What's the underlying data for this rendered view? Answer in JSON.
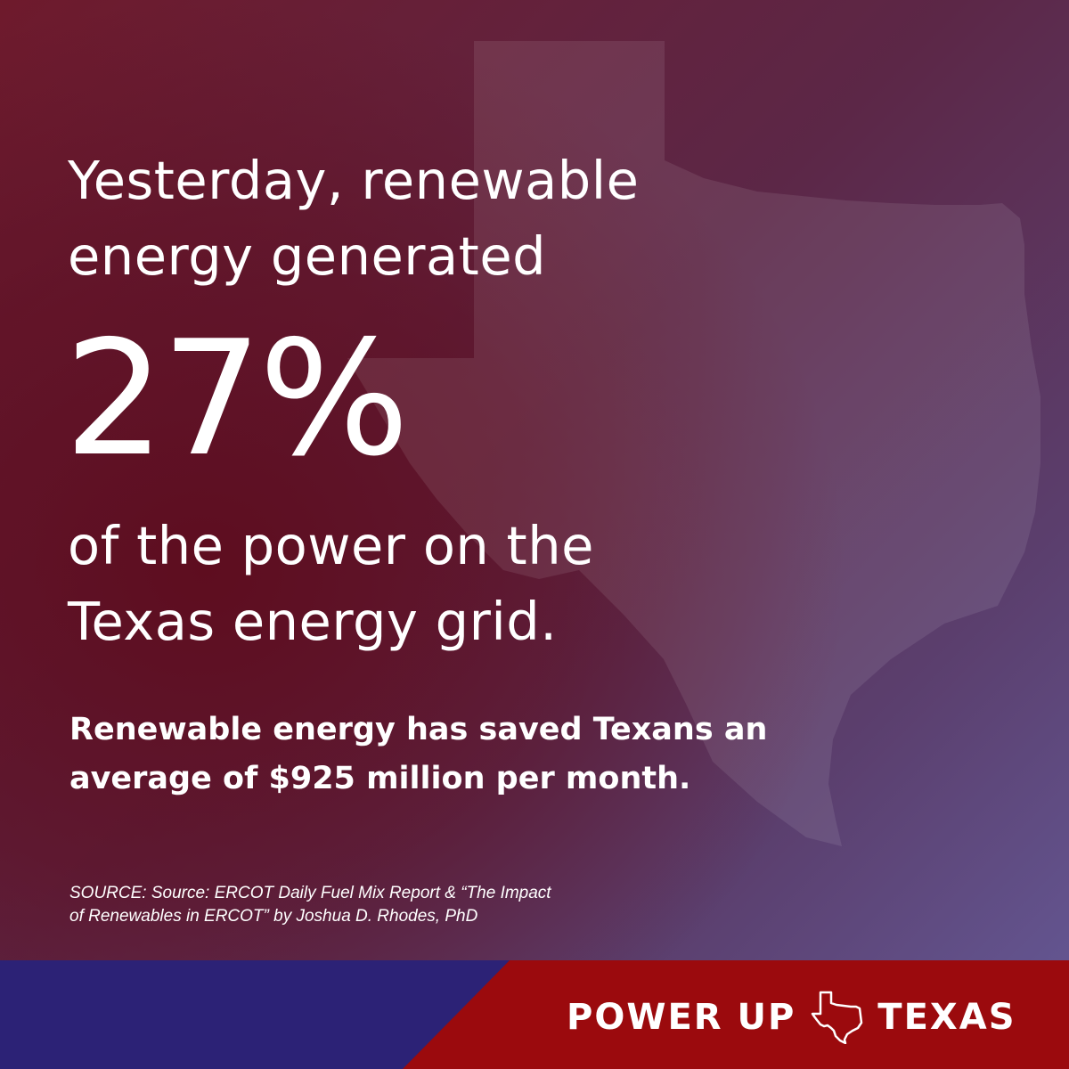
{
  "headline": {
    "line1": "Yesterday, renewable",
    "line2": "energy generated"
  },
  "stat": {
    "value": "27%"
  },
  "after_stat": {
    "line1": "of the power on the",
    "line2": "Texas energy grid."
  },
  "savings": {
    "line1": "Renewable energy has saved Texans an",
    "line2": "average of $925 million per month."
  },
  "source": {
    "line1": "SOURCE: Source: ERCOT Daily Fuel Mix Report & “The Impact",
    "line2": "of Renewables in ERCOT” by Joshua D. Rhodes, PhD"
  },
  "brand": {
    "left_word": "POWER UP",
    "icon": "texas-outline-icon",
    "right_word": "TEXAS"
  },
  "colors": {
    "footer_blue": "#2c2276",
    "footer_red": "#9b0a0d",
    "text": "#ffffff"
  }
}
